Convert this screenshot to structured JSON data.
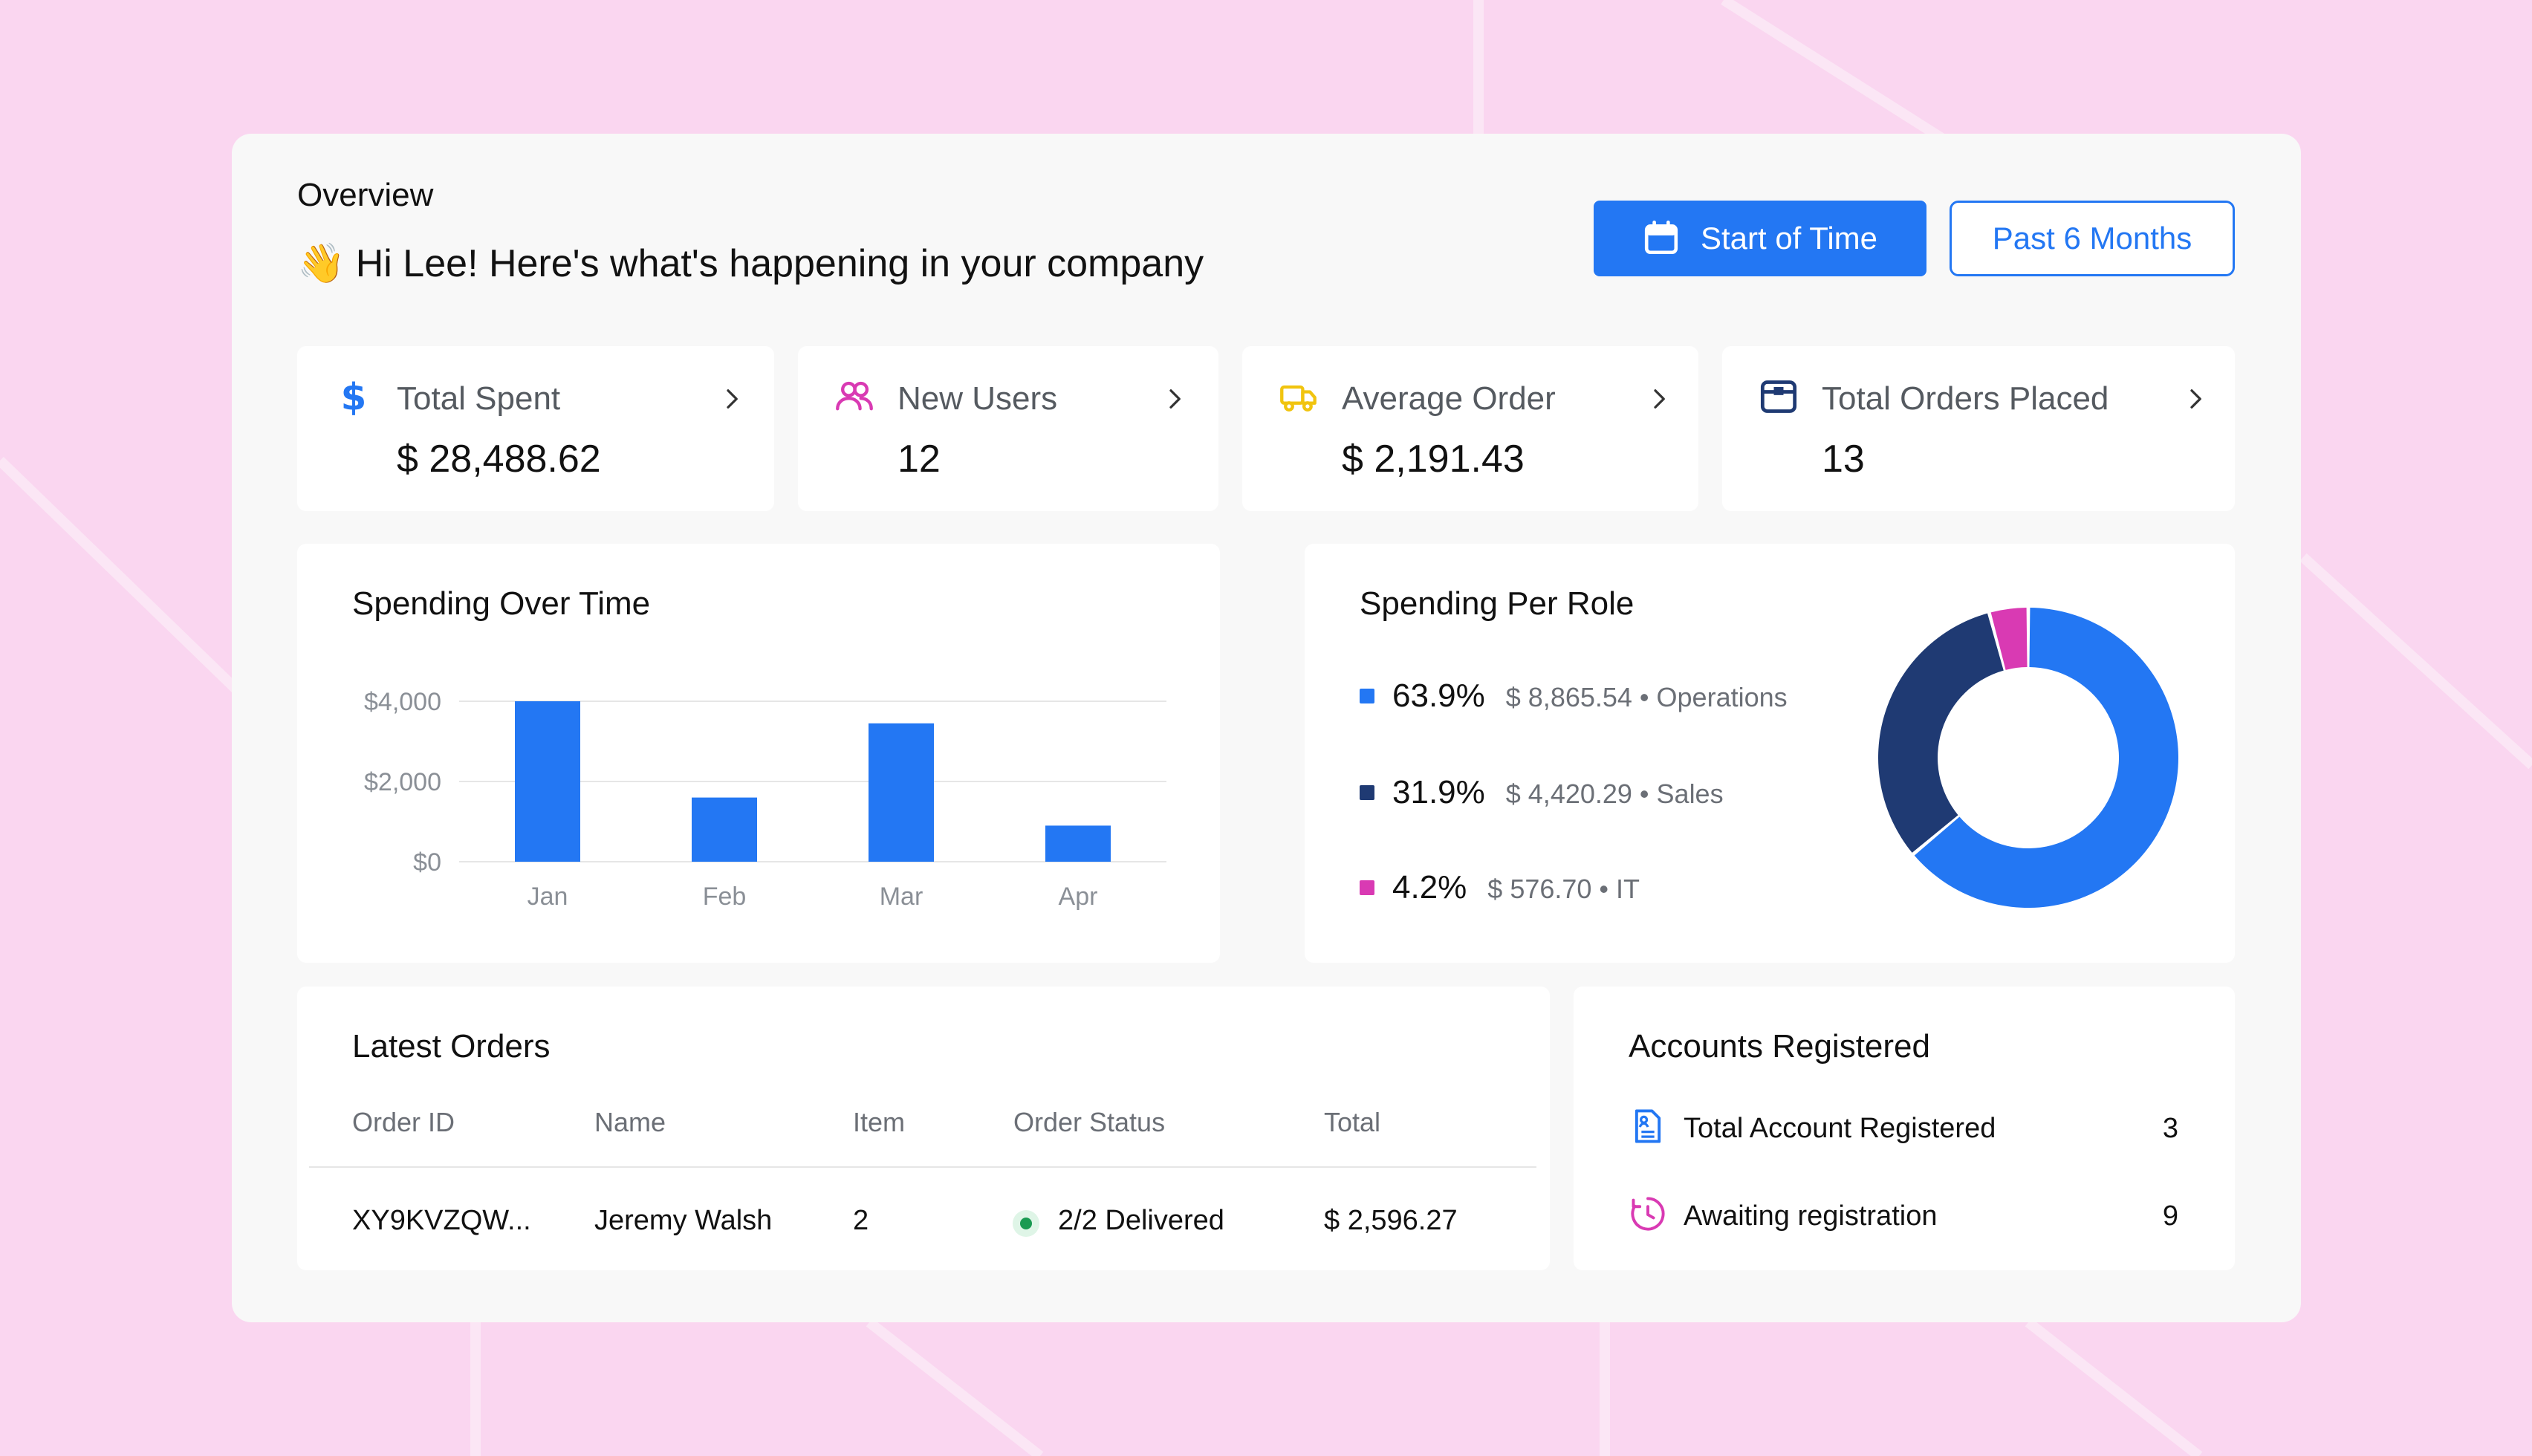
{
  "colors": {
    "background": "#fad6f0",
    "panel": "#f8f8f8",
    "card": "#ffffff",
    "accent": "#2377f3",
    "operations": "#2377f3",
    "sales": "#1f3a73",
    "it": "#d93ab3",
    "status_green": "#1a9a52",
    "yellow": "#f1c40f"
  },
  "header": {
    "overview": "Overview",
    "wave": "👋",
    "greeting": "Hi Lee! Here's what's happening in your company",
    "start_button": "Start of Time",
    "start_icon": "calendar-icon",
    "period_button": "Past 6 Months"
  },
  "stats": [
    {
      "icon": "dollar-icon",
      "label": "Total Spent",
      "value": "$ 28,488.62"
    },
    {
      "icon": "users-icon",
      "label": "New Users",
      "value": "12"
    },
    {
      "icon": "truck-icon",
      "label": "Average Order",
      "value": "$ 2,191.43"
    },
    {
      "icon": "box-icon",
      "label": "Total Orders Placed",
      "value": "13"
    }
  ],
  "spending_over_time": {
    "title": "Spending Over Time"
  },
  "spending_per_role": {
    "title": "Spending Per Role",
    "items": [
      {
        "pct": "63.9%",
        "detail": "$ 8,865.54 • Operations"
      },
      {
        "pct": "31.9%",
        "detail": "$ 4,420.29 • Sales"
      },
      {
        "pct": "4.2%",
        "detail": "$ 576.70 • IT"
      }
    ]
  },
  "chart_data": [
    {
      "type": "bar",
      "title": "Spending Over Time",
      "categories": [
        "Jan",
        "Feb",
        "Mar",
        "Apr"
      ],
      "values": [
        4000,
        1600,
        3450,
        900
      ],
      "yticks": [
        "$4,000",
        "$2,000",
        "$0"
      ],
      "ytick_values": [
        4000,
        2000,
        0
      ],
      "ylim": [
        0,
        4000
      ],
      "grid": true,
      "color": "#2377f3"
    },
    {
      "type": "pie",
      "title": "Spending Per Role",
      "labels": [
        "Operations",
        "Sales",
        "IT"
      ],
      "values": [
        63.9,
        31.9,
        4.2
      ],
      "colors": [
        "#2377f3",
        "#1f3a73",
        "#d93ab3"
      ]
    }
  ],
  "latest_orders": {
    "title": "Latest Orders",
    "columns": [
      "Order ID",
      "Name",
      "Item",
      "Order Status",
      "Total"
    ],
    "rows": [
      {
        "order_id": "XY9KVZQW...",
        "name": "Jeremy Walsh",
        "item": "2",
        "status": "2/2 Delivered",
        "total": "$ 2,596.27"
      }
    ]
  },
  "accounts": {
    "title": "Accounts Registered",
    "rows": [
      {
        "icon": "document-icon",
        "label": "Total Account Registered",
        "value": "3"
      },
      {
        "icon": "clock-icon",
        "label": "Awaiting registration",
        "value": "9"
      }
    ]
  }
}
